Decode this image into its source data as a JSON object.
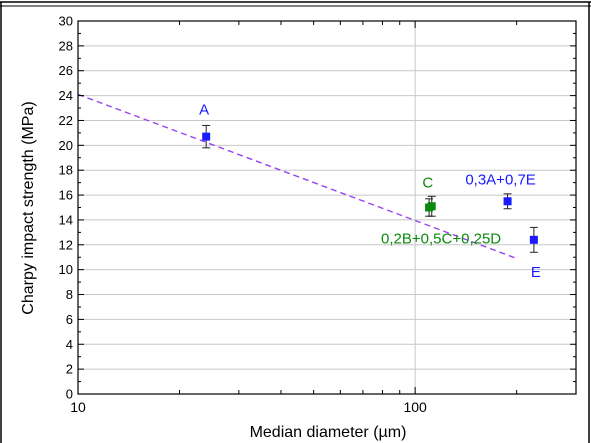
{
  "chart_data": {
    "type": "scatter",
    "xlabel": "Median diameter (µm)",
    "ylabel": "Charpy impact strength (MPa)",
    "xscale": "log",
    "xlim": [
      10,
      300
    ],
    "ylim": [
      0,
      30
    ],
    "xticks": [
      {
        "value": 10,
        "label": "10"
      },
      {
        "value": 100,
        "label": "100"
      }
    ],
    "yticks": [
      "0",
      "2",
      "4",
      "6",
      "8",
      "10",
      "12",
      "14",
      "16",
      "18",
      "20",
      "22",
      "24",
      "26",
      "28",
      "30"
    ],
    "grid": true,
    "colors": {
      "axis": "#000000",
      "grid": "#c8c8c8",
      "blue": "#1a1aff",
      "green": "#0a8a0a",
      "trend": "#9b42f5"
    },
    "points": [
      {
        "label": "A",
        "x": 24,
        "y": 20.7,
        "err": 0.9,
        "color": "blue",
        "label_pos": "above"
      },
      {
        "label": "C",
        "x": 112,
        "y": 15.1,
        "err": 0.8,
        "color": "green",
        "label_pos": "above"
      },
      {
        "label": "0,2B+0,5C+0,25D",
        "x": 110,
        "y": 15.0,
        "err": 0.7,
        "color": "green",
        "label_pos": "below"
      },
      {
        "label": "0,3A+0,7E",
        "x": 188,
        "y": 15.5,
        "err": 0.6,
        "color": "blue",
        "label_pos": "above"
      },
      {
        "label": "E",
        "x": 225,
        "y": 12.4,
        "err": 1.0,
        "color": "blue",
        "label_pos": "below"
      }
    ],
    "trendline": {
      "x": [
        10,
        200
      ],
      "y": [
        24.1,
        10.9
      ],
      "style": "dashed"
    }
  }
}
